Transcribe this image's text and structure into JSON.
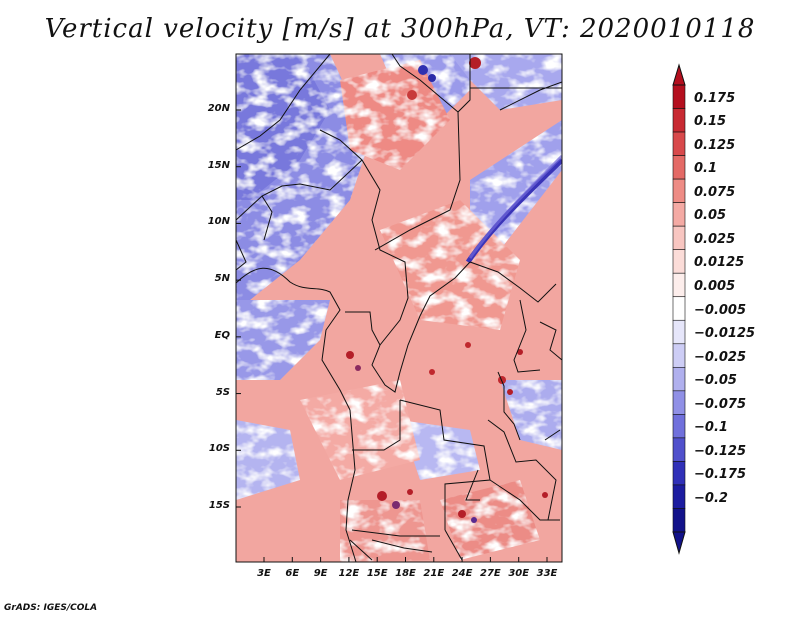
{
  "title": "Vertical velocity [m/s] at 300hPa, VT: 2020010118",
  "credit": "GrADS: IGES/COLA",
  "map": {
    "lat_range": [
      -20,
      25
    ],
    "lon_range": [
      0,
      35
    ],
    "lat_ticks": [
      {
        "label": "20N",
        "value": 20
      },
      {
        "label": "15N",
        "value": 15
      },
      {
        "label": "10N",
        "value": 10
      },
      {
        "label": "5N",
        "value": 5
      },
      {
        "label": "EQ",
        "value": 0
      },
      {
        "label": "5S",
        "value": -5
      },
      {
        "label": "10S",
        "value": -10
      },
      {
        "label": "15S",
        "value": -15
      }
    ],
    "lon_ticks": [
      {
        "label": "3E",
        "value": 3
      },
      {
        "label": "6E",
        "value": 6
      },
      {
        "label": "9E",
        "value": 9
      },
      {
        "label": "12E",
        "value": 12
      },
      {
        "label": "15E",
        "value": 15
      },
      {
        "label": "18E",
        "value": 18
      },
      {
        "label": "21E",
        "value": 21
      },
      {
        "label": "24E",
        "value": 24
      },
      {
        "label": "27E",
        "value": 27
      },
      {
        "label": "30E",
        "value": 30
      },
      {
        "label": "33E",
        "value": 33
      }
    ]
  },
  "colorbar": {
    "labels": [
      "0.175",
      "0.15",
      "0.125",
      "0.1",
      "0.075",
      "0.05",
      "0.025",
      "0.0125",
      "0.005",
      "−0.005",
      "−0.0125",
      "−0.025",
      "−0.05",
      "−0.075",
      "−0.1",
      "−0.125",
      "−0.175",
      "−0.2"
    ],
    "colors": [
      "#b40f1e",
      "#c82a32",
      "#d8494b",
      "#e46a66",
      "#ee8c85",
      "#f4aaa4",
      "#f8c6c1",
      "#fbdcd8",
      "#fdeeec",
      "#ffffff",
      "#e6e6fa",
      "#cdcdf5",
      "#b0b0ee",
      "#9090e6",
      "#7070dc",
      "#5050cc",
      "#3030b8",
      "#1c1ca0",
      "#12128a"
    ]
  }
}
